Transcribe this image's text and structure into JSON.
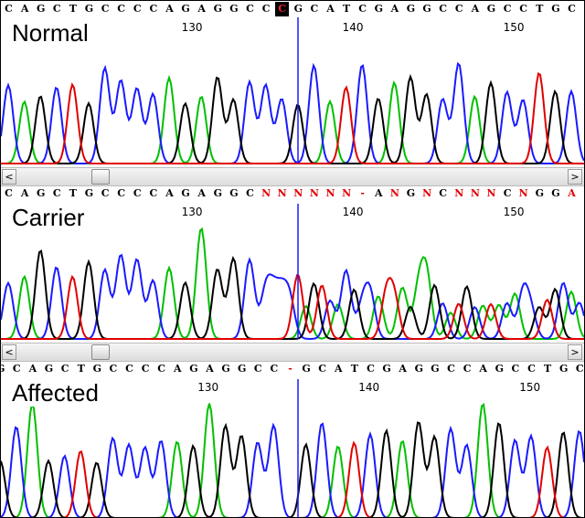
{
  "panels": [
    {
      "label": "Normal",
      "sequence": [
        "C",
        "A",
        "G",
        "C",
        "T",
        "G",
        "C",
        "C",
        "C",
        "C",
        "A",
        "G",
        "A",
        "G",
        "G",
        "C",
        "C",
        "C",
        "G",
        "C",
        "A",
        "T",
        "C",
        "G",
        "A",
        "G",
        "G",
        "C",
        "C",
        "A",
        "G",
        "C",
        "C",
        "T",
        "G",
        "C"
      ],
      "seq_offset": 0,
      "highlight_index": 17,
      "ticks": [
        {
          "text": "130",
          "index": 11
        },
        {
          "text": "140",
          "index": 21
        },
        {
          "text": "150",
          "index": 31
        }
      ],
      "has_scrollbar": true,
      "mixed": false
    },
    {
      "label": "Carrier",
      "sequence": [
        "C",
        "A",
        "G",
        "C",
        "T",
        "G",
        "C",
        "C",
        "C",
        "C",
        "A",
        "G",
        "A",
        "G",
        "G",
        "C",
        "N",
        "N",
        "N",
        "N",
        "N",
        "N",
        "-",
        "A",
        "N",
        "G",
        "N",
        "C",
        "N",
        "N",
        "N",
        "C",
        "N",
        "G",
        "G",
        "A"
      ],
      "seq_offset": 0,
      "highlight_index": -1,
      "ticks": [
        {
          "text": "130",
          "index": 11
        },
        {
          "text": "140",
          "index": 21
        },
        {
          "text": "150",
          "index": 31
        }
      ],
      "has_scrollbar": true,
      "mixed": true
    },
    {
      "label": "Affected",
      "sequence": [
        "G",
        "C",
        "A",
        "G",
        "C",
        "T",
        "G",
        "C",
        "C",
        "C",
        "C",
        "A",
        "G",
        "A",
        "G",
        "G",
        "C",
        "C",
        "-",
        "G",
        "C",
        "A",
        "T",
        "C",
        "G",
        "A",
        "G",
        "G",
        "C",
        "C",
        "A",
        "G",
        "C",
        "C",
        "T",
        "G",
        "C"
      ],
      "seq_offset": -0.5,
      "highlight_index": 18,
      "ticks": [
        {
          "text": "130",
          "index": 12
        },
        {
          "text": "140",
          "index": 22
        },
        {
          "text": "150",
          "index": 32
        }
      ],
      "has_scrollbar": false,
      "mixed": false
    }
  ],
  "scrollbar": {
    "left_arrow": "<",
    "right_arrow": ">"
  },
  "colors": {
    "A": "#00c000",
    "C": "#1a1aff",
    "G": "#000000",
    "T": "#e00000",
    "N": "#e00000",
    "-": "#e00000",
    "highlight_bg": "#000000",
    "highlight_fg": "#ff2a2a",
    "marker": "#1a1aff"
  }
}
